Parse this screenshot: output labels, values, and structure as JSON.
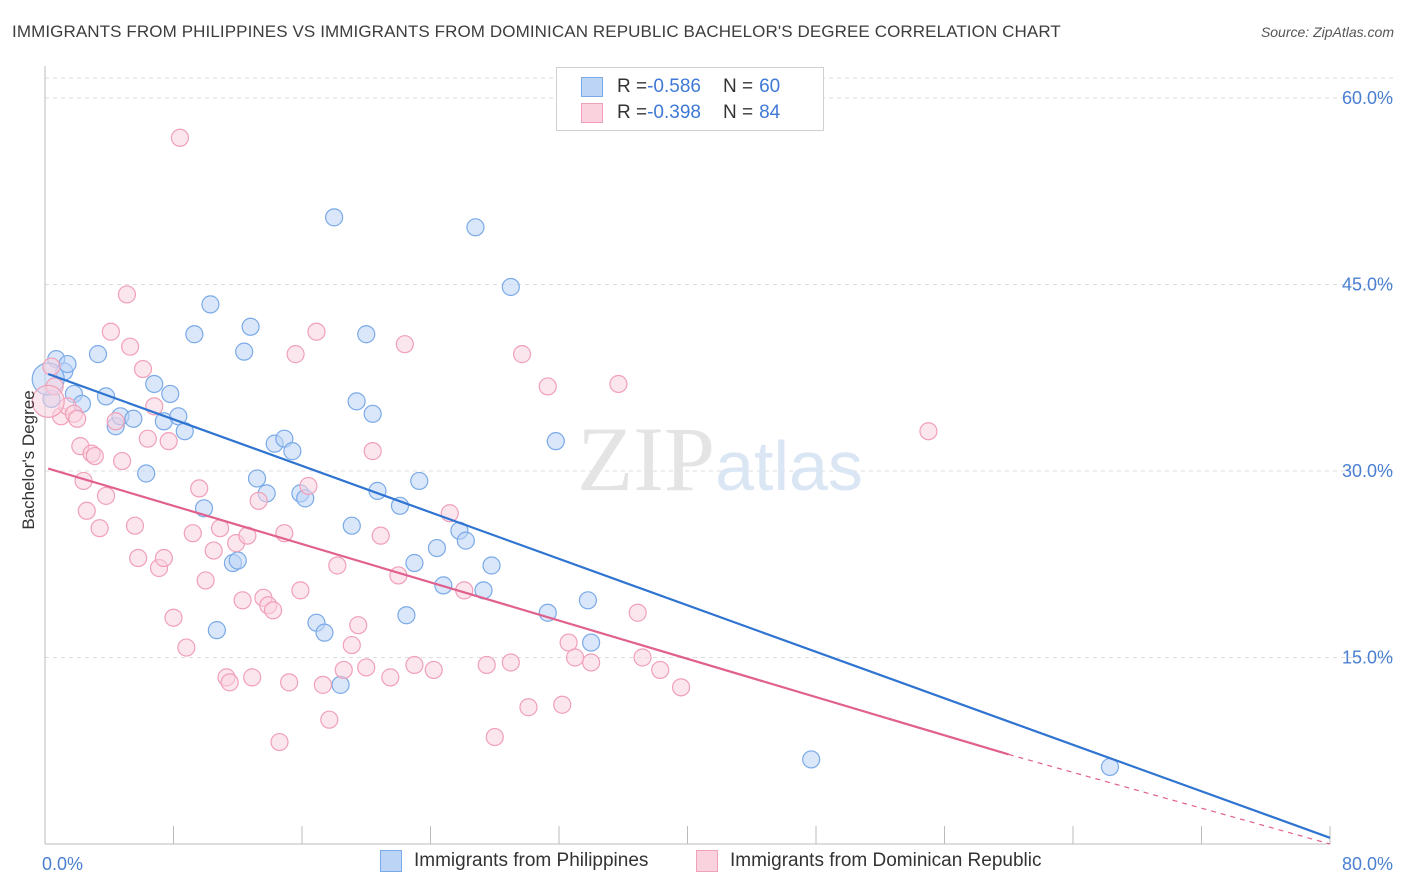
{
  "header": {
    "title": "IMMIGRANTS FROM PHILIPPINES VS IMMIGRANTS FROM DOMINICAN REPUBLIC BACHELOR'S DEGREE CORRELATION CHART",
    "source": "Source: ZipAtlas.com"
  },
  "watermark": "ZIPatlas",
  "legend_stats": {
    "rows": [
      {
        "r_label": "R = ",
        "r_value": "-0.586",
        "n_label": "N = ",
        "n_value": "60"
      },
      {
        "r_label": "R = ",
        "r_value": "-0.398",
        "n_label": "N = ",
        "n_value": "84"
      }
    ]
  },
  "chart_data": {
    "type": "scatter",
    "ylabel": "Bachelor's Degree",
    "xlabel": "",
    "xlim": [
      0,
      80
    ],
    "ylim": [
      0,
      63
    ],
    "x_tick_labels": [
      "0.0%",
      "80.0%"
    ],
    "y_ticks": [
      15,
      30,
      45,
      60
    ],
    "y_tick_labels": [
      "15.0%",
      "30.0%",
      "45.0%",
      "60.0%"
    ],
    "grid": "horizontal dashed",
    "legend_placement": "bottom",
    "series": [
      {
        "name": "Immigrants from Philippines",
        "color": "#7aaae8",
        "fill": "#bcd4f5",
        "line_color": "#2f74d0",
        "trend": {
          "x0": 0.2,
          "y0": 37.8,
          "x1": 80,
          "y1": 0.5
        },
        "points": [
          [
            0.4,
            35.8
          ],
          [
            0.7,
            39.0
          ],
          [
            1.2,
            38.0
          ],
          [
            1.4,
            38.6
          ],
          [
            1.8,
            36.2
          ],
          [
            2.3,
            35.4
          ],
          [
            3.3,
            39.4
          ],
          [
            3.8,
            36.0
          ],
          [
            4.4,
            33.6
          ],
          [
            4.7,
            34.4
          ],
          [
            5.5,
            34.2
          ],
          [
            6.3,
            29.8
          ],
          [
            6.8,
            37.0
          ],
          [
            7.4,
            34.0
          ],
          [
            7.8,
            36.2
          ],
          [
            8.3,
            34.4
          ],
          [
            8.7,
            33.2
          ],
          [
            9.3,
            41.0
          ],
          [
            9.9,
            27.0
          ],
          [
            10.3,
            43.4
          ],
          [
            10.7,
            17.2
          ],
          [
            11.7,
            22.6
          ],
          [
            12.0,
            22.8
          ],
          [
            12.4,
            39.6
          ],
          [
            12.8,
            41.6
          ],
          [
            13.2,
            29.4
          ],
          [
            13.8,
            28.2
          ],
          [
            14.3,
            32.2
          ],
          [
            14.9,
            32.6
          ],
          [
            15.4,
            31.6
          ],
          [
            15.9,
            28.2
          ],
          [
            16.2,
            27.8
          ],
          [
            16.9,
            17.8
          ],
          [
            17.4,
            17.0
          ],
          [
            18.0,
            50.4
          ],
          [
            18.4,
            12.8
          ],
          [
            19.1,
            25.6
          ],
          [
            19.4,
            35.6
          ],
          [
            20.0,
            41.0
          ],
          [
            20.4,
            34.6
          ],
          [
            20.7,
            28.4
          ],
          [
            22.1,
            27.2
          ],
          [
            22.5,
            18.4
          ],
          [
            23.0,
            22.6
          ],
          [
            23.3,
            29.2
          ],
          [
            24.4,
            23.8
          ],
          [
            24.8,
            20.8
          ],
          [
            25.8,
            25.2
          ],
          [
            26.2,
            24.4
          ],
          [
            26.8,
            49.6
          ],
          [
            27.3,
            20.4
          ],
          [
            27.8,
            22.4
          ],
          [
            29.0,
            44.8
          ],
          [
            31.3,
            18.6
          ],
          [
            31.8,
            32.4
          ],
          [
            33.8,
            19.6
          ],
          [
            34.0,
            16.2
          ],
          [
            47.7,
            6.8
          ],
          [
            66.3,
            6.2
          ],
          [
            0.2,
            37.4
          ]
        ]
      },
      {
        "name": "Immigrants from Dominican Republic",
        "color": "#f0a0b8",
        "fill": "#f9d2de",
        "line_color": "#e0608e",
        "trend": {
          "x0": 0.2,
          "y0": 30.2,
          "x1": 60,
          "y1": 7.2
        },
        "trend_dashed_to": {
          "x": 80,
          "y": 0.0
        },
        "points": [
          [
            0.4,
            38.4
          ],
          [
            0.6,
            36.8
          ],
          [
            1.0,
            34.4
          ],
          [
            1.4,
            35.2
          ],
          [
            1.8,
            34.6
          ],
          [
            2.0,
            34.2
          ],
          [
            2.2,
            32.0
          ],
          [
            2.4,
            29.2
          ],
          [
            2.6,
            26.8
          ],
          [
            2.9,
            31.4
          ],
          [
            3.1,
            31.2
          ],
          [
            3.4,
            25.4
          ],
          [
            3.8,
            28.0
          ],
          [
            4.1,
            41.2
          ],
          [
            4.4,
            34.0
          ],
          [
            4.8,
            30.8
          ],
          [
            5.1,
            44.2
          ],
          [
            5.3,
            40.0
          ],
          [
            5.6,
            25.6
          ],
          [
            5.8,
            23.0
          ],
          [
            6.1,
            38.2
          ],
          [
            6.4,
            32.6
          ],
          [
            6.8,
            35.2
          ],
          [
            7.1,
            22.2
          ],
          [
            7.4,
            23.0
          ],
          [
            7.7,
            32.4
          ],
          [
            8.0,
            18.2
          ],
          [
            8.4,
            56.8
          ],
          [
            8.8,
            15.8
          ],
          [
            9.2,
            25.0
          ],
          [
            9.6,
            28.6
          ],
          [
            10.0,
            21.2
          ],
          [
            10.5,
            23.6
          ],
          [
            10.9,
            25.4
          ],
          [
            11.3,
            13.4
          ],
          [
            11.5,
            13.0
          ],
          [
            11.9,
            24.2
          ],
          [
            12.3,
            19.6
          ],
          [
            12.6,
            24.8
          ],
          [
            12.9,
            13.4
          ],
          [
            13.3,
            27.6
          ],
          [
            13.6,
            19.8
          ],
          [
            13.9,
            19.2
          ],
          [
            14.2,
            18.8
          ],
          [
            14.6,
            8.2
          ],
          [
            14.9,
            25.0
          ],
          [
            15.2,
            13.0
          ],
          [
            15.6,
            39.4
          ],
          [
            15.9,
            20.4
          ],
          [
            16.4,
            28.8
          ],
          [
            16.9,
            41.2
          ],
          [
            17.3,
            12.8
          ],
          [
            17.7,
            10.0
          ],
          [
            18.2,
            22.4
          ],
          [
            18.6,
            14.0
          ],
          [
            19.1,
            16.0
          ],
          [
            19.5,
            17.6
          ],
          [
            20.0,
            14.2
          ],
          [
            20.4,
            31.6
          ],
          [
            20.9,
            24.8
          ],
          [
            21.5,
            13.4
          ],
          [
            22.0,
            21.6
          ],
          [
            22.4,
            40.2
          ],
          [
            23.0,
            14.4
          ],
          [
            24.2,
            14.0
          ],
          [
            25.2,
            26.6
          ],
          [
            26.1,
            20.4
          ],
          [
            27.5,
            14.4
          ],
          [
            28.0,
            8.6
          ],
          [
            29.0,
            14.6
          ],
          [
            29.7,
            39.4
          ],
          [
            30.1,
            11.0
          ],
          [
            31.3,
            36.8
          ],
          [
            32.2,
            11.2
          ],
          [
            32.6,
            16.2
          ],
          [
            33.0,
            15.0
          ],
          [
            34.0,
            14.6
          ],
          [
            35.7,
            37.0
          ],
          [
            36.9,
            18.6
          ],
          [
            37.2,
            15.0
          ],
          [
            38.3,
            14.0
          ],
          [
            39.6,
            12.6
          ],
          [
            55.0,
            33.2
          ],
          [
            0.2,
            35.6
          ]
        ]
      }
    ]
  }
}
